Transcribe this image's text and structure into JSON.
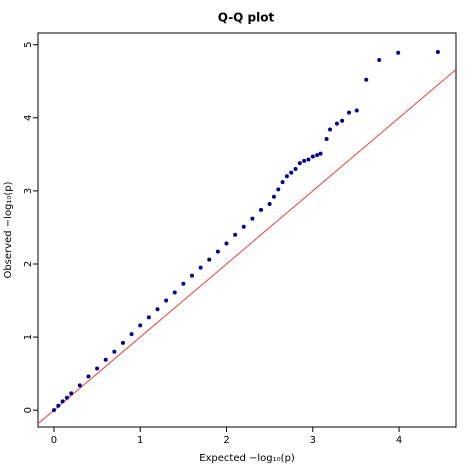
{
  "chart_data": {
    "type": "scatter",
    "title": "Q-Q plot",
    "x_label": "Expected  −log₁₀(p)",
    "y_label": "Observed  −log₁₀(p)",
    "xlim": [
      -0.185,
      4.66
    ],
    "ylim": [
      -0.23,
      5.16
    ],
    "xticks": [
      0,
      1,
      2,
      3,
      4
    ],
    "yticks": [
      0,
      1,
      2,
      3,
      4,
      5
    ],
    "reference_line_color": "#e8413a",
    "series": [
      {
        "name": "observed",
        "color": "#00008b",
        "x": [
          0,
          0.05,
          0.1,
          0.15,
          0.2,
          0.3,
          0.4,
          0.5,
          0.6,
          0.7,
          0.8,
          0.9,
          1.0,
          1.1,
          1.2,
          1.3,
          1.4,
          1.5,
          1.6,
          1.7,
          1.8,
          1.9,
          2.0,
          2.1,
          2.2,
          2.3,
          2.4,
          2.5,
          2.55,
          2.6,
          2.65,
          2.7,
          2.75,
          2.8,
          2.85,
          2.9,
          2.95,
          3.0,
          3.05,
          3.09,
          3.16,
          3.2,
          3.28,
          3.34,
          3.42,
          3.51,
          3.62,
          3.77,
          3.99,
          4.45
        ],
        "values": [
          0,
          0.06,
          0.12,
          0.17,
          0.23,
          0.34,
          0.46,
          0.57,
          0.69,
          0.8,
          0.92,
          1.04,
          1.16,
          1.27,
          1.38,
          1.5,
          1.61,
          1.73,
          1.84,
          1.95,
          2.06,
          2.17,
          2.28,
          2.4,
          2.51,
          2.62,
          2.74,
          2.82,
          2.92,
          3.02,
          3.12,
          3.2,
          3.25,
          3.3,
          3.38,
          3.41,
          3.43,
          3.47,
          3.49,
          3.51,
          3.71,
          3.84,
          3.92,
          3.96,
          4.07,
          4.1,
          4.52,
          4.79,
          4.89,
          4.9
        ]
      }
    ]
  }
}
